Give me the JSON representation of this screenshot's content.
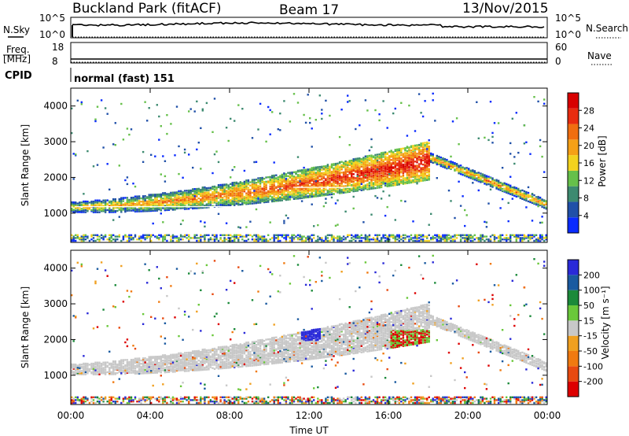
{
  "header": {
    "station": "Buckland Park (fitACF)",
    "beam": "Beam 17",
    "date": "13/Nov/2015",
    "cpid_label": "CPID",
    "cpid_value": "normal (fast) 151"
  },
  "panels": {
    "nsky": {
      "label": "N.Sky",
      "ticks": [
        "10^5",
        "10^0"
      ],
      "right_label": "N.Search",
      "right_ticks": [
        "10^5",
        "10^0"
      ]
    },
    "freq": {
      "label_lines": [
        "Freq.",
        "[MHz]"
      ],
      "ticks": [
        "18",
        "8"
      ],
      "right_label": "Nave",
      "right_ticks": [
        "60",
        "0"
      ]
    }
  },
  "colors": {
    "power": [
      "#0a2bff",
      "#2050a8",
      "#3d8a70",
      "#66c04a",
      "#f2d21e",
      "#f5a016",
      "#f06e10",
      "#e82c10",
      "#d80000"
    ],
    "velocity": [
      "#2a2ad8",
      "#1a5aa0",
      "#1b8a3a",
      "#6ac83a",
      "#c8c8c8",
      "#f0a020",
      "#f07a10",
      "#e84a10",
      "#dd0000"
    ]
  },
  "chart_data": [
    {
      "type": "heatmap",
      "title": "",
      "xlabel": "",
      "ylabel": "Slant Range [km]",
      "x_ticks": [
        "00:00",
        "04:00",
        "08:00",
        "12:00",
        "16:00",
        "20:00",
        "00:00"
      ],
      "y_ticks": [
        "1000",
        "2000",
        "3000",
        "4000"
      ],
      "xlim_hours": [
        0,
        24
      ],
      "ylim_km": [
        180,
        4500
      ],
      "colorbar": {
        "label": "Power [dB]",
        "ticks": [
          "4",
          "8",
          "12",
          "16",
          "20",
          "24",
          "28"
        ],
        "range": [
          0,
          30
        ]
      },
      "features": [
        {
          "name": "main band",
          "start_ut": 0,
          "end_ut": 18,
          "range_km_start": 1200,
          "range_km_end": 2500,
          "peak_db": 30
        },
        {
          "name": "descending echo",
          "start_ut": 17.5,
          "end_ut": 24,
          "range_km_start": 2600,
          "range_km_end": 1250,
          "peak_db": 12
        },
        {
          "name": "ground scatter",
          "start_ut": 0,
          "end_ut": 24,
          "range_km_start": 300,
          "range_km_end": 300,
          "peak_db": 16
        }
      ]
    },
    {
      "type": "heatmap",
      "title": "",
      "xlabel": "Time UT",
      "ylabel": "Slant Range [km]",
      "x_ticks": [
        "00:00",
        "04:00",
        "08:00",
        "12:00",
        "16:00",
        "20:00",
        "00:00"
      ],
      "y_ticks": [
        "1000",
        "2000",
        "3000",
        "4000"
      ],
      "xlim_hours": [
        0,
        24
      ],
      "ylim_km": [
        180,
        4500
      ],
      "colorbar": {
        "label": "Velocity [m s^-1]",
        "ticks": [
          "200",
          "100",
          "50",
          "15",
          "-15",
          "-50",
          "-100",
          "-200"
        ],
        "range": [
          -250,
          250
        ]
      }
    }
  ]
}
